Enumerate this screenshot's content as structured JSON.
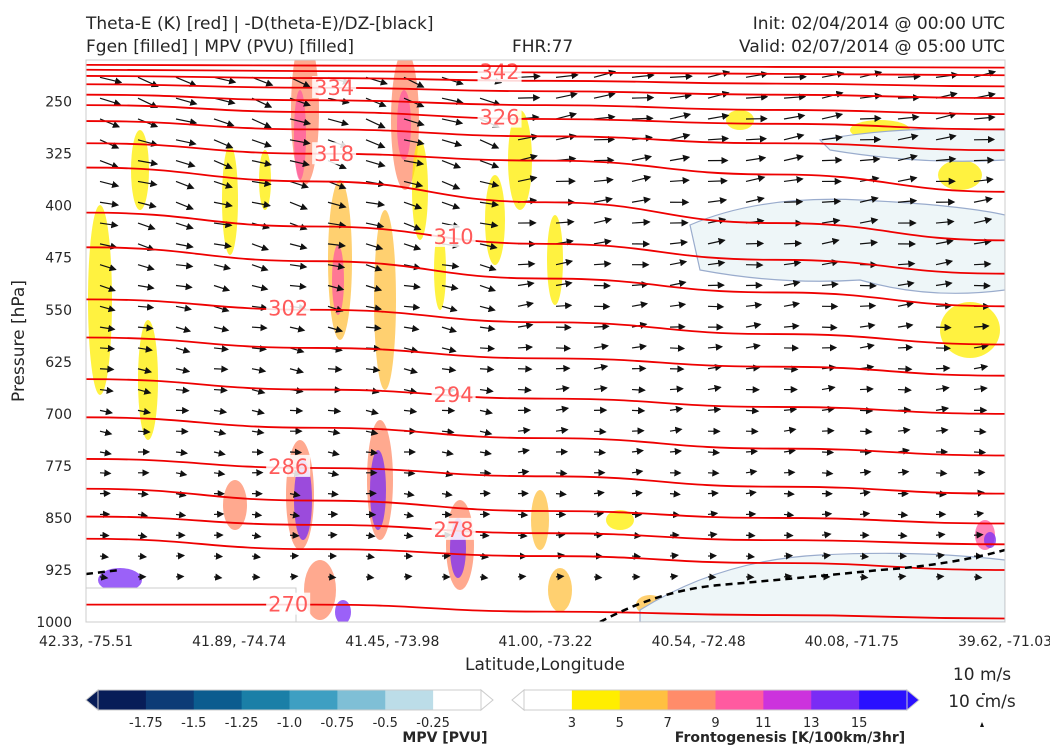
{
  "header": {
    "title_left_1": "Theta-E (K) [red] | -D(theta-E)/DZ-[black]",
    "title_left_2": "Fgen [filled] | MPV (PVU) [filled]",
    "fhr": "FHR:77",
    "init": "Init: 02/04/2014 @ 00:00 UTC",
    "valid": "Valid: 02/07/2014 @ 05:00 UTC"
  },
  "chart_data": {
    "type": "cross-section",
    "xlabel": "Latitude,Longitude",
    "ylabel": "Pressure [hPa]",
    "x_ticks": [
      "42.33, -75.51",
      "41.89, -74.74",
      "41.45, -73.98",
      "41.00, -73.22",
      "40.54, -72.48",
      "40.08, -71.75",
      "39.62, -71.03"
    ],
    "y_ticks": [
      250,
      325,
      400,
      475,
      550,
      625,
      700,
      775,
      850,
      925,
      1000
    ],
    "ylim": [
      1000,
      190
    ],
    "theta_e_contours": [
      {
        "value": 270,
        "y_levels": [
          975,
          975,
          985,
          990,
          995
        ]
      },
      {
        "value": 274,
        "y_levels": [
          880,
          895,
          905,
          915,
          925
        ]
      },
      {
        "value": 278,
        "y_levels": [
          848,
          860,
          872,
          882,
          888
        ]
      },
      {
        "value": 282,
        "y_levels": [
          808,
          825,
          840,
          850,
          858
        ]
      },
      {
        "value": 286,
        "y_levels": [
          765,
          778,
          790,
          805,
          815
        ]
      },
      {
        "value": 290,
        "y_levels": [
          705,
          720,
          735,
          750,
          760
        ]
      },
      {
        "value": 294,
        "y_levels": [
          650,
          665,
          678,
          690,
          700
        ]
      },
      {
        "value": 298,
        "y_levels": [
          590,
          605,
          620,
          632,
          645
        ]
      },
      {
        "value": 302,
        "y_levels": [
          535,
          550,
          568,
          585,
          600
        ]
      },
      {
        "value": 306,
        "y_levels": [
          460,
          480,
          505,
          525,
          545
        ]
      },
      {
        "value": 310,
        "y_levels": [
          410,
          430,
          455,
          478,
          498
        ]
      },
      {
        "value": 314,
        "y_levels": [
          345,
          365,
          395,
          425,
          450
        ]
      },
      {
        "value": 318,
        "y_levels": [
          310,
          325,
          335,
          355,
          380
        ]
      },
      {
        "value": 322,
        "y_levels": [
          278,
          290,
          300,
          310,
          320
        ]
      },
      {
        "value": 326,
        "y_levels": [
          255,
          265,
          275,
          282,
          290
        ]
      },
      {
        "value": 330,
        "y_levels": [
          240,
          248,
          255,
          262,
          268
        ]
      },
      {
        "value": 334,
        "y_levels": [
          225,
          230,
          235,
          240,
          245
        ]
      },
      {
        "value": 338,
        "y_levels": [
          213,
          216,
          220,
          224,
          228
        ]
      },
      {
        "value": 342,
        "y_levels": [
          204,
          206,
          208,
          210,
          212
        ]
      },
      {
        "value": 346,
        "y_levels": [
          197,
          198,
          199,
          200,
          201
        ]
      }
    ],
    "mpv_colorbar": {
      "label": "MPV [PVU]",
      "ticks": [
        "-1.75",
        "-1.5",
        "-1.25",
        "-1.0",
        "-0.75",
        "-0.5",
        "-0.25"
      ],
      "colors": [
        "#081d58",
        "#0d3b76",
        "#0b5c8f",
        "#1a7fa7",
        "#3e9fc2",
        "#7fbfd6",
        "#bcdde8",
        "#ffffff"
      ]
    },
    "fgen_colorbar": {
      "label": "Frontogenesis [K/100km/3hr]",
      "ticks": [
        "3",
        "5",
        "7",
        "9",
        "11",
        "13",
        "15"
      ],
      "colors": [
        "#ffffff",
        "#ffee00",
        "#ffc040",
        "#ff8c6a",
        "#ff5aa0",
        "#cc33dd",
        "#7a2cf5",
        "#2a10ff"
      ]
    },
    "wind_reference": [
      "10 m/s",
      "10 cm/s"
    ]
  }
}
